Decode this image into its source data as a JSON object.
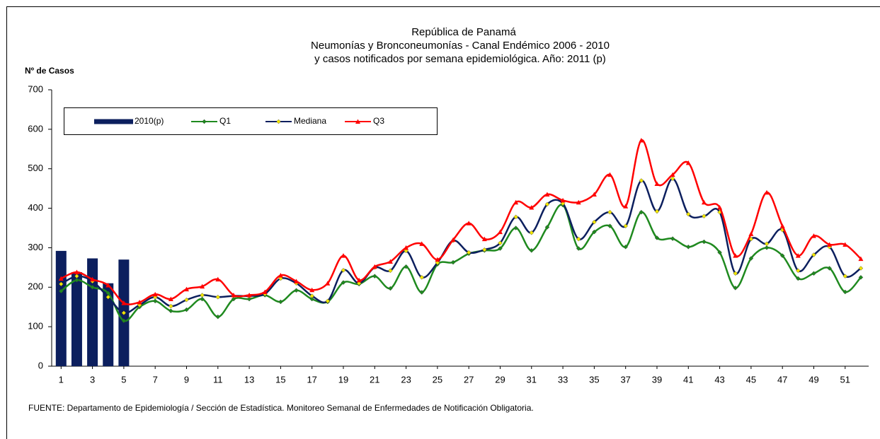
{
  "chart_data": {
    "type": "line",
    "title_lines": [
      "República de Panamá",
      "Neumonías y Bronconeumonías - Canal Endémico 2006  -  2010",
      "y casos notificados por semana epidemiológica. Año: 2011 (p)"
    ],
    "y_label": "Nº de Casos",
    "source": "FUENTE:  Departamento de Epidemiología / Sección de Estadística. Monitoreo Semanal de Enfermedades de Notificación Obligatoria.",
    "x": [
      1,
      2,
      3,
      4,
      5,
      6,
      7,
      8,
      9,
      10,
      11,
      12,
      13,
      14,
      15,
      16,
      17,
      18,
      19,
      20,
      21,
      22,
      23,
      24,
      25,
      26,
      27,
      28,
      29,
      30,
      31,
      32,
      33,
      34,
      35,
      36,
      37,
      38,
      39,
      40,
      41,
      42,
      43,
      44,
      45,
      46,
      47,
      48,
      49,
      50,
      51,
      52
    ],
    "xlim": [
      0.4,
      52.5
    ],
    "xticks": [
      1,
      3,
      5,
      7,
      9,
      11,
      13,
      15,
      17,
      19,
      21,
      23,
      25,
      27,
      29,
      31,
      33,
      35,
      37,
      39,
      41,
      43,
      45,
      47,
      49,
      51
    ],
    "ylim": [
      0,
      700
    ],
    "yticks": [
      0,
      100,
      200,
      300,
      400,
      500,
      600,
      700
    ],
    "legend": "upper left",
    "series": [
      {
        "name": "2010(p)",
        "kind": "bar",
        "color": "#0c1f5e",
        "values": [
          292,
          238,
          273,
          210,
          270,
          null,
          null,
          null,
          null,
          null,
          null,
          null,
          null,
          null,
          null,
          null,
          null,
          null,
          null,
          null,
          null,
          null,
          null,
          null,
          null,
          null,
          null,
          null,
          null,
          null,
          null,
          null,
          null,
          null,
          null,
          null,
          null,
          null,
          null,
          null,
          null,
          null,
          null,
          null,
          null,
          null,
          null,
          null,
          null,
          null,
          null,
          null
        ]
      },
      {
        "name": "Q1",
        "kind": "line",
        "color": "#1f8a1f",
        "marker": "diamond",
        "marker_color": "#1f8a1f",
        "values": [
          190,
          218,
          200,
          185,
          115,
          150,
          165,
          140,
          143,
          170,
          125,
          170,
          170,
          180,
          163,
          192,
          170,
          163,
          212,
          208,
          228,
          197,
          252,
          187,
          258,
          263,
          285,
          293,
          298,
          350,
          293,
          352,
          408,
          298,
          340,
          355,
          302,
          390,
          325,
          323,
          302,
          315,
          288,
          198,
          273,
          300,
          280,
          222,
          235,
          248,
          188,
          225
        ]
      },
      {
        "name": "Mediana",
        "kind": "line",
        "color": "#0c1f5e",
        "marker": "diamond",
        "marker_color": "#f2e600",
        "values": [
          208,
          228,
          215,
          175,
          135,
          155,
          175,
          152,
          168,
          180,
          175,
          178,
          178,
          183,
          222,
          210,
          178,
          165,
          243,
          210,
          250,
          242,
          292,
          225,
          262,
          318,
          288,
          295,
          312,
          378,
          338,
          410,
          412,
          322,
          365,
          390,
          355,
          470,
          392,
          475,
          385,
          380,
          390,
          235,
          322,
          310,
          345,
          242,
          282,
          302,
          228,
          248
        ]
      },
      {
        "name": "Q3",
        "kind": "line",
        "color": "#ff0000",
        "marker": "triangle",
        "marker_color": "#ff0000",
        "values": [
          222,
          238,
          220,
          205,
          160,
          162,
          182,
          170,
          195,
          202,
          220,
          180,
          180,
          188,
          230,
          215,
          193,
          210,
          280,
          218,
          252,
          265,
          300,
          310,
          270,
          320,
          362,
          322,
          340,
          415,
          402,
          435,
          420,
          415,
          435,
          485,
          405,
          572,
          462,
          485,
          515,
          415,
          402,
          280,
          335,
          440,
          355,
          280,
          330,
          308,
          308,
          272
        ]
      }
    ]
  }
}
